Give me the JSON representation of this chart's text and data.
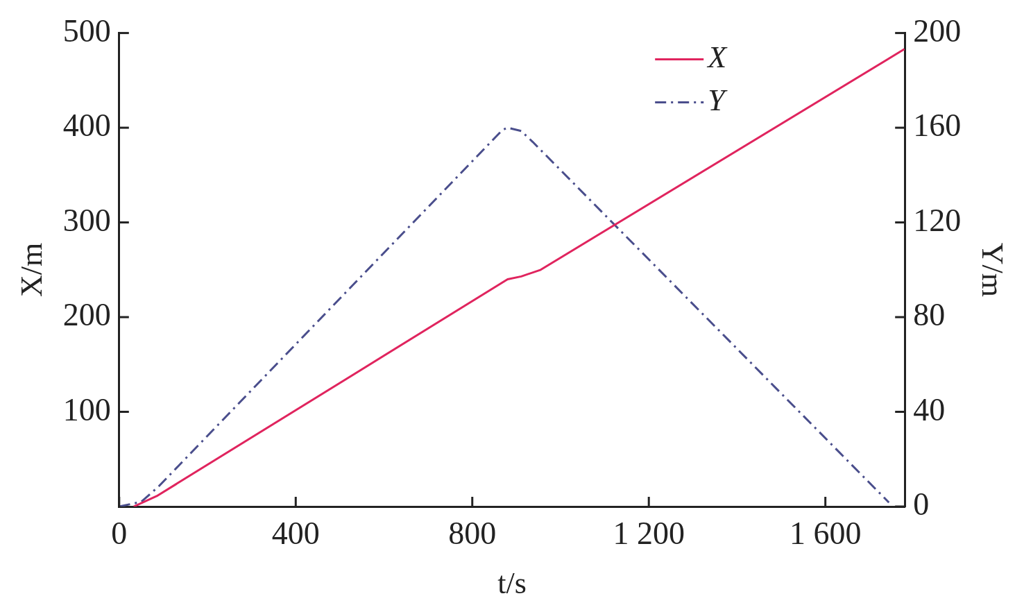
{
  "chart_data": {
    "type": "line",
    "xlabel": "t/s",
    "ylabel": "X/m",
    "y2label": "Y/m",
    "xlim": [
      0,
      1780
    ],
    "xticks": [
      0,
      400,
      800,
      {
        "value": 1200,
        "label": "1 200"
      },
      {
        "value": 1600,
        "label": "1 600"
      }
    ],
    "ylim": [
      0,
      500
    ],
    "yticks": [
      100,
      200,
      300,
      400,
      500
    ],
    "y2lim": [
      0,
      200
    ],
    "y2ticks": [
      0,
      40,
      80,
      120,
      160,
      200
    ],
    "grid": false,
    "legend": "top right",
    "marker": "none",
    "series": [
      {
        "name": "X",
        "color": "#e0245e",
        "line_style": "solid",
        "x": [
          33,
          85,
          880,
          911,
          955,
          1779
        ],
        "values": [
          0,
          11,
          240,
          243,
          250,
          483
        ]
      },
      {
        "name": "Y",
        "color": "#4a4e8c",
        "line_style": "dashed",
        "axis": "y2",
        "x": [
          0,
          50,
          89,
          868,
          880,
          911,
          937,
          1744
        ],
        "values": [
          0,
          2,
          8.4,
          159,
          160,
          158.6,
          154,
          1.7
        ]
      }
    ]
  }
}
